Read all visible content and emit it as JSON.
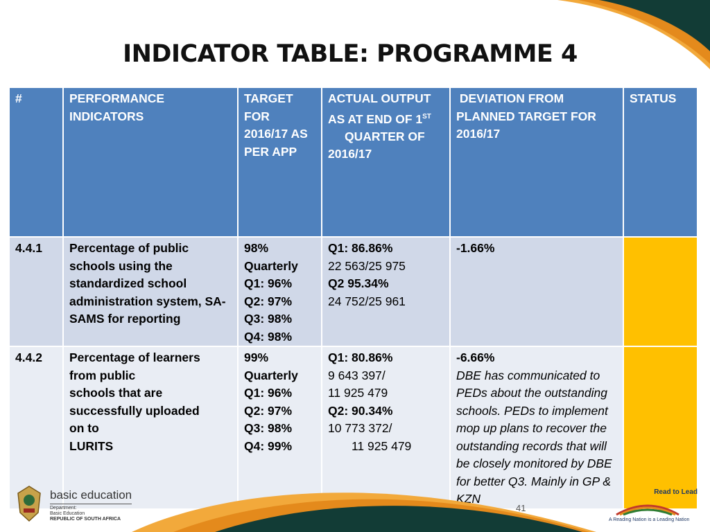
{
  "title": "INDICATOR TABLE: PROGRAMME 4",
  "table": {
    "headers": {
      "num": "#",
      "indicators": "PERFORMANCE INDICATORS",
      "target": "TARGET FOR 2016/17 AS PER APP",
      "actual_pre": "ACTUAL OUTPUT AS AT END OF 1",
      "actual_sup": "ST",
      "actual_post": "QUARTER OF 2016/17",
      "deviation": "DEVIATION FROM PLANNED TARGET FOR 2016/17",
      "status": "STATUS"
    },
    "rows": [
      {
        "num": "4.4.1",
        "indicator": "Percentage of public schools using the standardized school administration system, SA-SAMS for reporting",
        "target": [
          "98%",
          "Quarterly",
          "Q1: 96%",
          "Q2: 97%",
          "Q3: 98%",
          "Q4: 98%"
        ],
        "actual": [
          "Q1: 86.86%",
          "22 563/25 975",
          "Q2 95.34%",
          "24 752/25 961"
        ],
        "deviation": "-1.66%",
        "deviation_note": "",
        "status_color": "#ffc000"
      },
      {
        "num": "4.4.2",
        "indicator_lines": [
          "Percentage of learners",
          "from public",
          "schools that are",
          "successfully uploaded",
          "on to",
          "LURITS"
        ],
        "target": [
          "99%",
          "Quarterly",
          "Q1: 96%",
          "Q2: 97%",
          "Q3: 98%",
          "Q4: 99%"
        ],
        "actual": [
          "Q1: 80.86%",
          "9 643 397/",
          "11 925 479",
          "Q2: 90.34%",
          "10 773 372/",
          "11 925 479"
        ],
        "deviation": "-6.66%",
        "deviation_note": "DBE has communicated to PEDs about the outstanding schools. PEDs to implement mop up plans to recover the outstanding records that will be closely monitored by DBE for better Q3. Mainly  in GP & KZN",
        "status_color": "#ffc000"
      }
    ]
  },
  "footer": {
    "left_logo": {
      "name": "basic education",
      "line1": "Department:",
      "line2": "Basic Education",
      "line3": "REPUBLIC OF SOUTH AFRICA"
    },
    "page_number": "41",
    "right_logo": {
      "name": "Read to Lead",
      "tagline": "A Reading Nation is a Leading Nation"
    }
  },
  "colors": {
    "header_blue": "#4f81bd",
    "row1_bg": "#d0d8e8",
    "row2_bg": "#e9edf4",
    "status_amber": "#ffc000",
    "swoosh_dark": "#123c36",
    "swoosh_orange": "#e48a1c"
  }
}
